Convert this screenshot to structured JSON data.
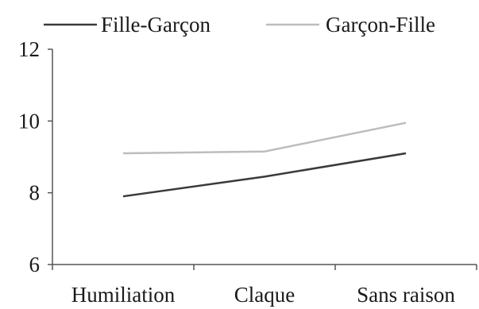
{
  "chart_data": {
    "type": "line",
    "title": "",
    "xlabel": "",
    "ylabel": "",
    "categories": [
      "Humiliation",
      "Claque",
      "Sans raison"
    ],
    "ylim": [
      6,
      12
    ],
    "yticks": [
      6,
      8,
      10,
      12
    ],
    "grid": false,
    "legend_position": "top",
    "series": [
      {
        "name": "Fille-Garçon",
        "values": [
          7.9,
          8.45,
          9.1
        ],
        "color": "#3a3a3a"
      },
      {
        "name": "Garçon-Fille",
        "values": [
          9.1,
          9.15,
          9.95
        ],
        "color": "#bdbdbd"
      }
    ]
  }
}
